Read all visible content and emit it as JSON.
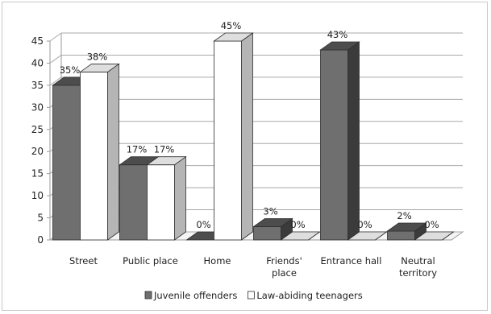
{
  "chart_data": {
    "type": "bar",
    "title": "",
    "xlabel": "",
    "ylabel": "",
    "ylim": [
      0,
      45
    ],
    "yticks": [
      0,
      5,
      10,
      15,
      20,
      25,
      30,
      35,
      40,
      45
    ],
    "grid": true,
    "legend_position": "bottom",
    "categories": [
      [
        "Street"
      ],
      [
        "Public place"
      ],
      [
        "Home"
      ],
      [
        "Friends'",
        "place"
      ],
      [
        "Entrance hall"
      ],
      [
        "Neutral",
        "territory"
      ]
    ],
    "series": [
      {
        "name": "Juvenile offenders",
        "values": [
          35,
          17,
          0,
          3,
          43,
          2
        ],
        "labels": [
          "35%",
          "17%",
          "0%",
          "3%",
          "43%",
          "2%"
        ],
        "color": "#6f6f6f",
        "top_color": "#4d4d4d",
        "side_color": "#3b3b3b"
      },
      {
        "name": "Law-abiding teenagers",
        "values": [
          38,
          17,
          45,
          0,
          0,
          0
        ],
        "labels": [
          "38%",
          "17%",
          "45%",
          "0%",
          "0%",
          "0%"
        ],
        "color": "#ffffff",
        "top_color": "#dedede",
        "side_color": "#b5b5b5"
      }
    ]
  }
}
